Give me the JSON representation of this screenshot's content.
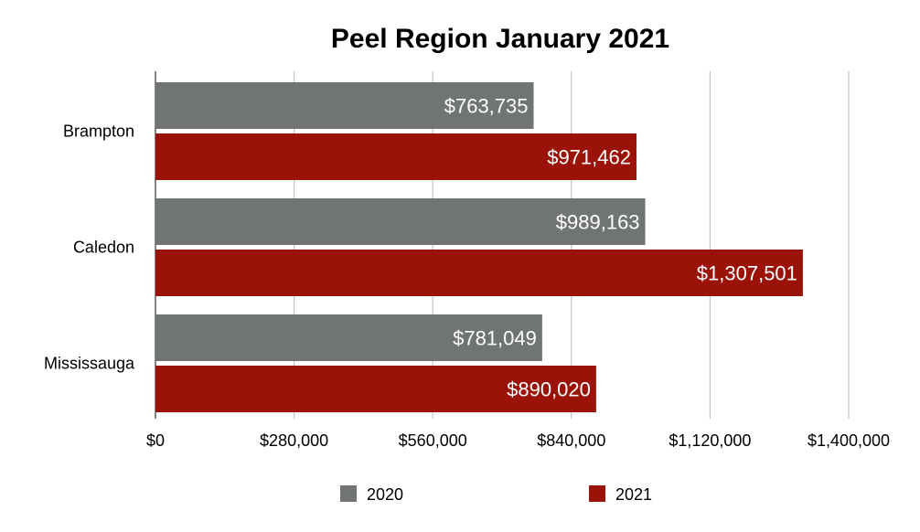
{
  "chart_data": {
    "type": "bar",
    "orientation": "horizontal",
    "title": "Peel Region January 2021",
    "categories": [
      "Brampton",
      "Caledon",
      "Mississauga"
    ],
    "series": [
      {
        "name": "2020",
        "color": "#707472",
        "values": [
          763735,
          989163,
          781049
        ],
        "labels": [
          "$763,735",
          "$989,163",
          "$781,049"
        ]
      },
      {
        "name": "2021",
        "color": "#9b1208",
        "values": [
          971462,
          1307501,
          890020
        ],
        "labels": [
          "$971,462",
          "$1,307,501",
          "$890,020"
        ]
      }
    ],
    "xlim": [
      0,
      1400000
    ],
    "ticks": [
      0,
      280000,
      560000,
      840000,
      1120000,
      1400000
    ],
    "tick_labels": [
      "$0",
      "$280,000",
      "$560,000",
      "$840,000",
      "$1,120,000",
      "$1,400,000"
    ],
    "grid": true,
    "legend_position": "bottom"
  }
}
